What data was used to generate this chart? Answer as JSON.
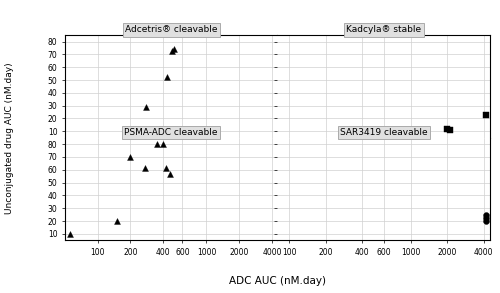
{
  "top_left_label": "Adcetris® cleavable",
  "top_right_label": "Kadcyla® stable",
  "bottom_left_label": "PSMA-ADC cleavable",
  "bottom_right_label": "SAR3419 cleavable",
  "xlabel": "ADC AUC (nM.day)",
  "ylabel": "Unconjugated drug AUC (nM.day)",
  "top_left_data": {
    "x": [
      280,
      430,
      480,
      500
    ],
    "y": [
      29,
      52,
      73,
      74
    ],
    "marker": "^"
  },
  "top_right_data": {
    "x": [
      2000,
      2100,
      4200
    ],
    "y": [
      12,
      11,
      23
    ],
    "marker": "s"
  },
  "bottom_left_data": {
    "x": [
      55,
      150,
      200,
      270,
      350,
      400,
      420,
      460
    ],
    "y": [
      10,
      20,
      70,
      61,
      80,
      80,
      61,
      57
    ],
    "marker": "^"
  },
  "bottom_right_data": {
    "x": [
      4200,
      4200,
      4200
    ],
    "y": [
      25,
      22,
      20
    ],
    "marker": "o"
  },
  "left_xticks": [
    100,
    200,
    400,
    600,
    1000,
    2000,
    4000
  ],
  "right_xticks": [
    100,
    200,
    400,
    600,
    1000,
    2000,
    4000
  ],
  "yticks": [
    10,
    20,
    30,
    40,
    50,
    60,
    70,
    80
  ],
  "ylim": [
    5,
    85
  ],
  "left_xlim": [
    50,
    4500
  ],
  "right_xlim": [
    80,
    4500
  ],
  "marker_size": 18,
  "face_color": "#ffffff",
  "grid_color": "#d0d0d0",
  "label_bg_color": "#e0e0e0",
  "label_edge_color": "#aaaaaa"
}
